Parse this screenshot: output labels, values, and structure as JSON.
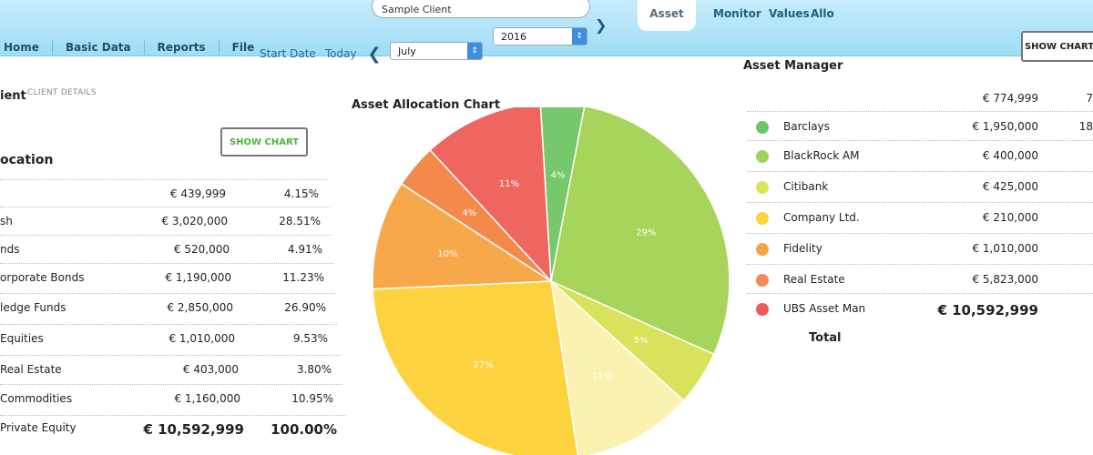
{
  "header": {
    "nav": [
      "Home",
      "Basic Data",
      "Reports",
      "File"
    ],
    "client_name": "Sample Client",
    "tabs": [
      "Asset",
      "Monitor",
      "Values",
      "Allo"
    ],
    "active_tab": "Asset"
  },
  "date_bar": {
    "start_date_label": "Start Date",
    "today_label": "Today",
    "month": "July",
    "year": "2016"
  },
  "left_panel": {
    "title": "ient",
    "subtitle": "CLIENT DETAILS",
    "show_chart_label": "SHOW CHART",
    "allocation_title": "ocation",
    "rows": [
      {
        "label": "",
        "value": "€ 439,999",
        "pct": "4.15%"
      },
      {
        "label": "sh",
        "value": "€ 3,020,000",
        "pct": "28.51%"
      },
      {
        "label": "nds",
        "value": "€ 520,000",
        "pct": "4.91%"
      },
      {
        "label": "orporate Bonds",
        "value": "€ 1,190,000",
        "pct": "11.23%"
      },
      {
        "label": "ledge Funds",
        "value": "€ 2,850,000",
        "pct": "26.90%"
      },
      {
        "label": "Equities",
        "value": "€ 1,010,000",
        "pct": "9.53%"
      },
      {
        "label": "Real Estate",
        "value": "€ 403,000",
        "pct": "3.80%"
      },
      {
        "label": "Commodities",
        "value": "€ 1,160,000",
        "pct": "10.95%"
      },
      {
        "label": "Private Equity",
        "value": "€ 10,592,999",
        "pct": "100.00%"
      }
    ]
  },
  "chart_data": {
    "type": "pie",
    "title": "Asset Allocation Chart",
    "slices": [
      {
        "label": "4%",
        "value": 4,
        "color": "#77c76d"
      },
      {
        "label": "29%",
        "value": 29,
        "color": "#a7d45a"
      },
      {
        "label": "5%",
        "value": 5,
        "color": "#d8e25c"
      },
      {
        "label": "11%",
        "value": 11,
        "color": "#fbf1b0"
      },
      {
        "label": "27%",
        "value": 27,
        "color": "#fcd33f"
      },
      {
        "label": "10%",
        "value": 10,
        "color": "#f7a84a"
      },
      {
        "label": "4%",
        "value": 4,
        "color": "#f38a4c"
      },
      {
        "label": "11%",
        "value": 11,
        "color": "#ef6560"
      }
    ]
  },
  "right_panel": {
    "title": "Asset Manager",
    "show_chart_label": "SHOW CHART",
    "top_row": {
      "value": "€ 774,999",
      "extra": "7"
    },
    "managers": [
      {
        "label": "Barclays",
        "value": "€ 1,950,000",
        "extra": "18",
        "color": "#6dc66a"
      },
      {
        "label": "BlackRock AM",
        "value": "€ 400,000",
        "extra": "",
        "color": "#a3d25c"
      },
      {
        "label": "Citibank",
        "value": "€ 425,000",
        "extra": "",
        "color": "#d9e45d"
      },
      {
        "label": "Company Ltd.",
        "value": "€ 210,000",
        "extra": "",
        "color": "#f9d53c"
      },
      {
        "label": "Fidelity",
        "value": "€ 1,010,000",
        "extra": "",
        "color": "#f5a44a"
      },
      {
        "label": "Real Estate",
        "value": "€ 5,823,000",
        "extra": "",
        "color": "#f08b57"
      },
      {
        "label": "UBS Asset Man",
        "value": "€ 10,592,999",
        "extra": "",
        "color": "#ee5c5a"
      }
    ],
    "total_label": "Total"
  }
}
